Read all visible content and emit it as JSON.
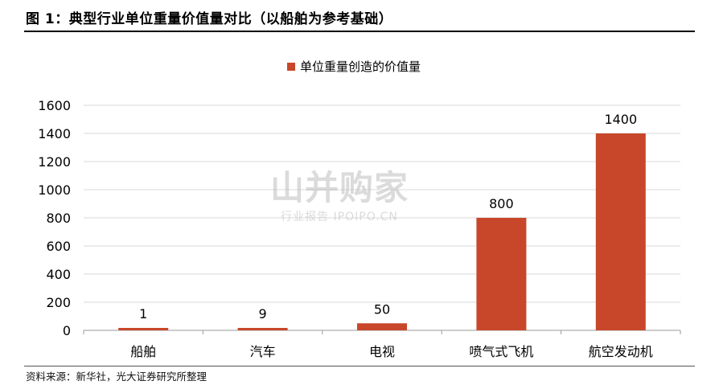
{
  "figure_title": "图 1：典型行业单位重量价值量对比（以船舶为参考基础）",
  "source": "资料来源：新华社，光大证券研究所整理",
  "watermark": {
    "main": "山并购家",
    "sub": "行业报告 IPOIPO.CN"
  },
  "colors": {
    "bar": "#C8472A",
    "grid": "#D9D9D9",
    "axis": "#000000"
  },
  "chart_data": {
    "type": "bar",
    "categories": [
      "船舶",
      "汽车",
      "电视",
      "喷气式飞机",
      "航空发动机"
    ],
    "series": [
      {
        "name": "单位重量创造的价值量",
        "values": [
          1,
          9,
          50,
          800,
          1400
        ]
      }
    ],
    "data_labels": [
      "1",
      "9",
      "50",
      "800",
      "1400"
    ],
    "yticks": [
      0,
      200,
      400,
      600,
      800,
      1000,
      1200,
      1400,
      1600
    ],
    "ylim": [
      0,
      1600
    ],
    "grid": true,
    "legend": "top-center"
  }
}
